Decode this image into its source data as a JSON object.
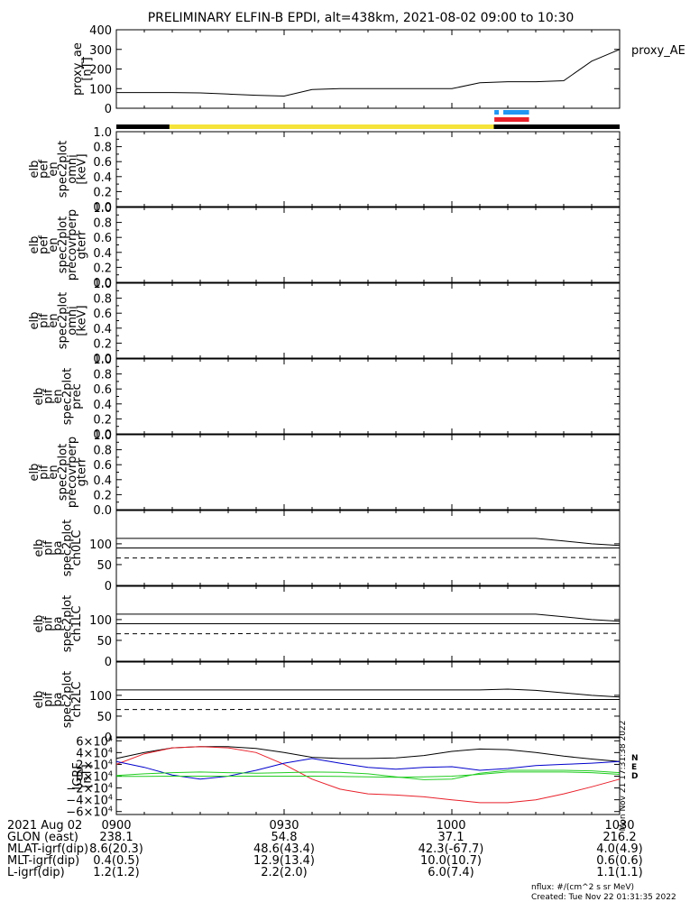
{
  "title": "PRELIMINARY ELFIN-B EPDI, alt=438km, 2021-08-02 09:00 to 10:30",
  "colors": {
    "black": "#000000",
    "yellow": "#f5e33a",
    "blue": "#2196f3",
    "red": "#e8202a",
    "green": "#22cc22",
    "navy": "#0000cc"
  },
  "time_range": [
    "09:00",
    "10:30"
  ],
  "chart_data": [
    {
      "id": "proxy_ae",
      "type": "line",
      "ylabel": [
        "proxy_ae",
        "[nT]"
      ],
      "legend": "proxy_AE",
      "ylim": [
        0,
        400
      ],
      "yticks": [
        "0",
        "100",
        "200",
        "300",
        "400"
      ],
      "yticks_values": [
        0,
        100,
        200,
        300,
        400
      ],
      "x_minutes": [
        0,
        5,
        10,
        15,
        20,
        25,
        30,
        35,
        40,
        45,
        50,
        55,
        60,
        65,
        70,
        75,
        80,
        85,
        90
      ],
      "values": [
        80,
        80,
        80,
        78,
        72,
        66,
        62,
        95,
        100,
        100,
        100,
        100,
        100,
        130,
        135,
        135,
        140,
        240,
        300
      ]
    },
    {
      "id": "status_bar",
      "type": "bar",
      "segments": [
        {
          "from": 0,
          "to": 9.5,
          "color": "black"
        },
        {
          "from": 9.5,
          "to": 67.5,
          "color": "yellow"
        },
        {
          "from": 67.5,
          "to": 90,
          "color": "black"
        }
      ],
      "marks": [
        {
          "from": 67.6,
          "to": 68.4,
          "color": "blue",
          "row": 0
        },
        {
          "from": 69.2,
          "to": 73.8,
          "color": "blue",
          "row": 0
        },
        {
          "from": 67.6,
          "to": 73.8,
          "color": "red",
          "row": 1
        }
      ]
    },
    {
      "id": "pef_en_spec2plot_omni",
      "type": "line",
      "ylabel": [
        "elb",
        "pef",
        "en",
        "spec2plot",
        "omni",
        "[keV]"
      ],
      "ylim": [
        0,
        1
      ],
      "yticks": [
        "0.0",
        "0.2",
        "0.4",
        "0.6",
        "0.8",
        "1.0"
      ],
      "yticks_values": [
        0,
        0.2,
        0.4,
        0.6,
        0.8,
        1.0
      ]
    },
    {
      "id": "pef_en_spec2plot_precovrperp_gterr",
      "type": "line",
      "ylabel": [
        "elb",
        "pef",
        "en",
        "spec2plot",
        "precovrperp",
        "gterr"
      ],
      "ylim": [
        0,
        1
      ],
      "yticks": [
        "0.0",
        "0.2",
        "0.4",
        "0.6",
        "0.8",
        "1.0"
      ],
      "yticks_values": [
        0,
        0.2,
        0.4,
        0.6,
        0.8,
        1.0
      ]
    },
    {
      "id": "pif_en_spec2plot_omni",
      "type": "line",
      "ylabel": [
        "elb",
        "pif",
        "en",
        "spec2plot",
        "omni",
        "[keV]"
      ],
      "ylim": [
        0,
        1
      ],
      "yticks": [
        "0.0",
        "0.2",
        "0.4",
        "0.6",
        "0.8",
        "1.0"
      ],
      "yticks_values": [
        0,
        0.2,
        0.4,
        0.6,
        0.8,
        1.0
      ]
    },
    {
      "id": "pif_en_spec2plot_prec",
      "type": "line",
      "ylabel": [
        "elb",
        "pif",
        "en",
        "spec2plot",
        "prec"
      ],
      "ylim": [
        0,
        1
      ],
      "yticks": [
        "0.0",
        "0.2",
        "0.4",
        "0.6",
        "0.8",
        "1.0"
      ],
      "yticks_values": [
        0,
        0.2,
        0.4,
        0.6,
        0.8,
        1.0
      ]
    },
    {
      "id": "pif_en_spec2plot_precovrperp_gterr",
      "type": "line",
      "ylabel": [
        "elb",
        "pif",
        "en",
        "spec2plot",
        "precovrperp",
        "gterr"
      ],
      "ylim": [
        0,
        1
      ],
      "yticks": [
        "0.0",
        "0.2",
        "0.4",
        "0.6",
        "0.8",
        "1.0"
      ],
      "yticks_values": [
        0,
        0.2,
        0.4,
        0.6,
        0.8,
        1.0
      ]
    },
    {
      "id": "pif_pa_spec2plot_ch0LC",
      "type": "line",
      "ylabel": [
        "elb",
        "pif",
        "pa",
        "spec2plot",
        "ch0LC"
      ],
      "ylim": [
        0,
        180
      ],
      "yticks": [
        "0",
        "50",
        "100"
      ],
      "yticks_values": [
        0,
        50,
        100
      ],
      "x_minutes": [
        0,
        10,
        20,
        30,
        40,
        50,
        60,
        65,
        70,
        75,
        80,
        85,
        90
      ],
      "series": [
        {
          "style": "solid",
          "values": [
            113,
            113,
            113,
            113,
            113,
            113,
            113,
            113,
            113,
            113,
            107,
            100,
            96
          ]
        },
        {
          "style": "solid",
          "values": [
            90,
            90,
            90,
            90,
            90,
            90,
            90,
            90,
            90,
            90,
            90,
            90,
            90
          ]
        },
        {
          "style": "dashed",
          "values": [
            66,
            66,
            66,
            67,
            67,
            67,
            67,
            67,
            67,
            67,
            67,
            67,
            67
          ]
        }
      ]
    },
    {
      "id": "pif_pa_spec2plot_ch1LC",
      "type": "line",
      "ylabel": [
        "elb",
        "pif",
        "pa",
        "spec2plot",
        "ch1LC"
      ],
      "ylim": [
        0,
        180
      ],
      "yticks": [
        "0",
        "50",
        "100"
      ],
      "yticks_values": [
        0,
        50,
        100
      ],
      "x_minutes": [
        0,
        10,
        20,
        30,
        40,
        50,
        60,
        65,
        70,
        75,
        80,
        85,
        90
      ],
      "series": [
        {
          "style": "solid",
          "values": [
            113,
            113,
            113,
            113,
            113,
            113,
            113,
            113,
            113,
            113,
            107,
            100,
            96
          ]
        },
        {
          "style": "solid",
          "values": [
            90,
            90,
            90,
            90,
            90,
            90,
            90,
            90,
            90,
            90,
            90,
            90,
            90
          ]
        },
        {
          "style": "dashed",
          "values": [
            66,
            66,
            66,
            67,
            67,
            67,
            67,
            67,
            67,
            67,
            67,
            67,
            67
          ]
        }
      ]
    },
    {
      "id": "pif_pa_spec2plot_ch2LC",
      "type": "line",
      "ylabel": [
        "elb",
        "pif",
        "pa",
        "spec2plot",
        "ch2LC"
      ],
      "ylim": [
        0,
        180
      ],
      "yticks": [
        "0",
        "50",
        "100"
      ],
      "yticks_values": [
        0,
        50,
        100
      ],
      "x_minutes": [
        0,
        10,
        20,
        30,
        40,
        50,
        60,
        65,
        70,
        75,
        80,
        85,
        90
      ],
      "series": [
        {
          "style": "solid",
          "values": [
            113,
            113,
            113,
            113,
            113,
            113,
            113,
            113,
            115,
            112,
            106,
            100,
            96
          ]
        },
        {
          "style": "solid",
          "values": [
            90,
            90,
            90,
            90,
            90,
            90,
            90,
            90,
            90,
            90,
            90,
            90,
            90
          ]
        },
        {
          "style": "dashed",
          "values": [
            66,
            66,
            66,
            67,
            67,
            67,
            67,
            67,
            67,
            67,
            67,
            67,
            67
          ]
        }
      ]
    },
    {
      "id": "igrf",
      "type": "line",
      "ylabel": [
        "IGRF",
        "[nT]"
      ],
      "ylim": [
        -65000,
        65000
      ],
      "yticks_mant": [
        "−6",
        "−4",
        "−2",
        "0",
        "2",
        "4",
        "6"
      ],
      "yticks_values": [
        -60000,
        -40000,
        -20000,
        0,
        20000,
        40000,
        60000
      ],
      "ytick_exp_label": "×10",
      "ytick_exp_sup": "4",
      "legend": [
        "N",
        "E",
        "D"
      ],
      "side_text": "Mon Nov 21 17:31:38 2022",
      "x_minutes": [
        0,
        5,
        10,
        15,
        20,
        25,
        30,
        35,
        40,
        45,
        50,
        55,
        60,
        65,
        70,
        75,
        80,
        85,
        90
      ],
      "series": [
        {
          "name": "N",
          "color": "black",
          "values": [
            30000,
            40000,
            48000,
            50000,
            50000,
            47000,
            40000,
            32000,
            30000,
            30000,
            31000,
            35000,
            42000,
            46000,
            45000,
            40000,
            34000,
            29000,
            25000
          ]
        },
        {
          "name": "E",
          "color": "red",
          "values": [
            20000,
            38000,
            48000,
            50000,
            48000,
            40000,
            20000,
            -5000,
            -22000,
            -30000,
            -32000,
            -35000,
            -40000,
            -45000,
            -45000,
            -40000,
            -30000,
            -18000,
            -5000
          ]
        },
        {
          "name": "",
          "color": "navy",
          "values": [
            25000,
            15000,
            2000,
            -5000,
            0,
            10000,
            22000,
            30000,
            22000,
            15000,
            12000,
            15000,
            16000,
            10000,
            13000,
            18000,
            20000,
            22000,
            25000
          ]
        },
        {
          "name": "D",
          "color": "green",
          "values": [
            -500,
            -500,
            0,
            0,
            0,
            0,
            0,
            0,
            -500,
            -1000,
            -2000,
            -1000,
            0,
            3000,
            7000,
            7000,
            7000,
            6000,
            3000
          ]
        },
        {
          "name": "",
          "color": "green",
          "values": [
            1000,
            4000,
            6000,
            7000,
            6000,
            5000,
            6000,
            7000,
            6500,
            4000,
            -1000,
            -6000,
            -5000,
            5000,
            10000,
            10000,
            10000,
            9000,
            6000
          ]
        }
      ]
    }
  ],
  "footer": {
    "rows": [
      {
        "label": "2021 Aug 02",
        "vals": [
          "0900",
          "0930",
          "1000",
          "1030"
        ]
      },
      {
        "label": "GLON (east)",
        "vals": [
          "238.1",
          "54.8",
          "37.1",
          "216.2"
        ]
      },
      {
        "label": "MLAT-igrf(dip)",
        "vals": [
          "8.6(20.3)",
          "48.6(43.4)",
          "42.3(-67.7)",
          "4.0(4.9)"
        ]
      },
      {
        "label": "MLT-igrf(dip)",
        "vals": [
          "0.4(0.5)",
          "12.9(13.4)",
          "10.0(10.7)",
          "0.6(0.6)"
        ]
      },
      {
        "label": "L-igrf(dip)",
        "vals": [
          "1.2(1.2)",
          "2.2(2.0)",
          "6.0(7.4)",
          "1.1(1.1)"
        ]
      }
    ],
    "nflux": "nflux: #/(cm^2 s sr MeV)",
    "created": "Created: Tue Nov 22 01:31:35 2022"
  }
}
